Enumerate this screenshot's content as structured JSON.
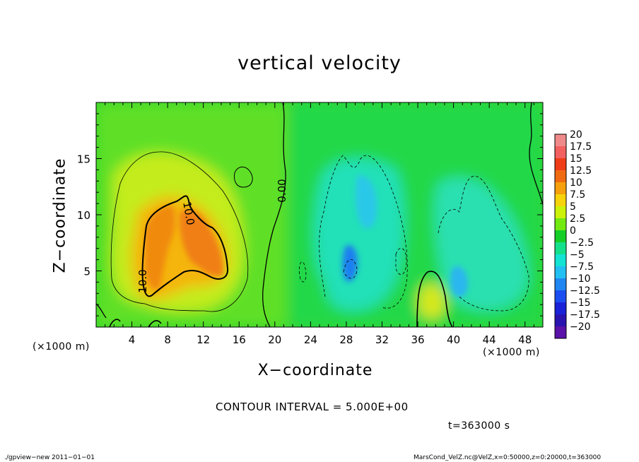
{
  "chart_data": {
    "type": "heatmap",
    "title": "vertical velocity",
    "xlabel": "X−coordinate",
    "ylabel": "Z−coordinate",
    "x_unit": "(×1000 m)",
    "xlim": [
      0,
      50
    ],
    "ylim": [
      0,
      20
    ],
    "x_ticks": [
      4,
      8,
      12,
      16,
      20,
      24,
      28,
      32,
      36,
      40,
      44,
      48
    ],
    "y_ticks": [
      5,
      10,
      15
    ],
    "colorbar": {
      "levels": [
        20,
        17.5,
        15,
        12.5,
        10,
        7.5,
        5,
        2.5,
        0,
        -2.5,
        -5,
        -7.5,
        -10,
        -12.5,
        -15,
        -17.5,
        -20
      ],
      "labels": [
        "20",
        "17.5",
        "15",
        "12.5",
        "10",
        "7.5",
        "5",
        "2.5",
        "0",
        "−2.5",
        "−5",
        "−7.5",
        "−10",
        "−12.5",
        "−15",
        "−17.5",
        "−20"
      ],
      "colors": [
        "#f08a8a",
        "#f26060",
        "#ef3d17",
        "#f06a12",
        "#f5a00c",
        "#f6d30a",
        "#ccf20a",
        "#72ea12",
        "#15cf28",
        "#15e08a",
        "#14e3d4",
        "#22bff2",
        "#1f86f2",
        "#1b4ef0",
        "#1a22d8",
        "#2a14b0",
        "#5a12a8"
      ]
    },
    "features": [
      {
        "type": "updraft",
        "x_center": 9,
        "z_center": 8,
        "peak": 12
      },
      {
        "type": "updraft",
        "x_center": 37,
        "z_center": 2,
        "peak": 7
      },
      {
        "type": "downdraft",
        "x_center": 28.5,
        "z_center": 5.5,
        "peak": -10
      },
      {
        "type": "downdraft",
        "x_center": 42,
        "z_center": 5,
        "peak": -6
      }
    ],
    "contour_labels": [
      "0.00",
      "10.0",
      "10.0"
    ],
    "contour_interval": "CONTOUR INTERVAL = 5.000E+00",
    "time": "t=363000 s"
  },
  "footer": {
    "left": "./gpview−new   2011−01−01",
    "right": "MarsCond_VelZ.nc@VelZ,x=0:50000,z=0:20000,t=363000"
  }
}
